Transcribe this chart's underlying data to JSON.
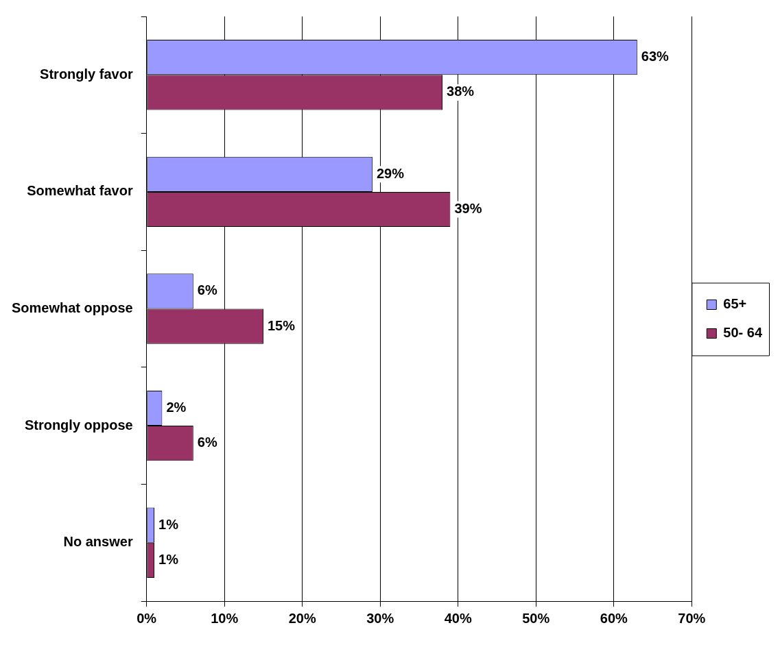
{
  "chart_data": {
    "type": "bar",
    "orientation": "horizontal",
    "categories": [
      "Strongly favor",
      "Somewhat favor",
      "Somewhat oppose",
      "Strongly oppose",
      "No answer"
    ],
    "series": [
      {
        "name": "65+",
        "color": "#9999ff",
        "values": [
          63,
          29,
          6,
          2,
          1
        ],
        "value_labels": [
          "63%",
          "29%",
          "6%",
          "2%",
          "1%"
        ]
      },
      {
        "name": "50- 64",
        "color": "#993366",
        "values": [
          38,
          39,
          15,
          6,
          1
        ],
        "value_labels": [
          "38%",
          "39%",
          "15%",
          "6%",
          "1%"
        ]
      }
    ],
    "xlim": [
      0,
      70
    ],
    "xticks": [
      {
        "value": 0,
        "label": "0%"
      },
      {
        "value": 10,
        "label": "10%"
      },
      {
        "value": 20,
        "label": "20%"
      },
      {
        "value": 30,
        "label": "30%"
      },
      {
        "value": 40,
        "label": "40%"
      },
      {
        "value": 50,
        "label": "50%"
      },
      {
        "value": 60,
        "label": "60%"
      },
      {
        "value": 70,
        "label": "70%"
      }
    ],
    "grid": "x",
    "legend": "right"
  }
}
